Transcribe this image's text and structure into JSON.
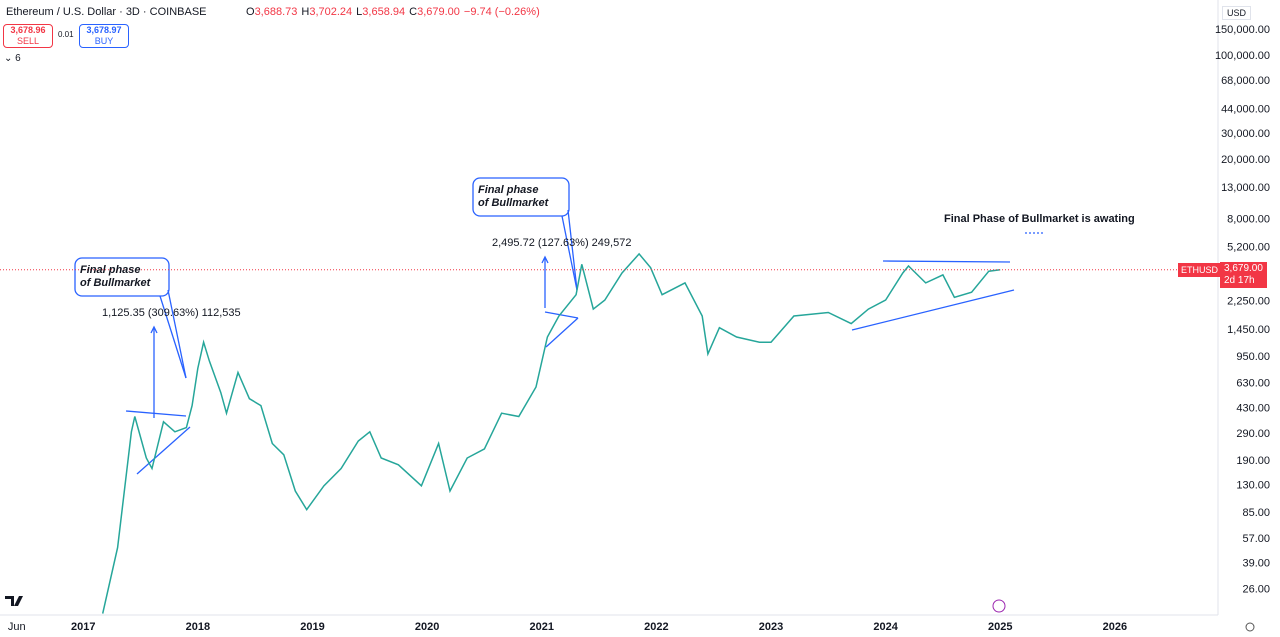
{
  "header": {
    "title": "Ethereum / U.S. Dollar · 3D · COINBASE",
    "ohlc": [
      "O",
      "3,688.73",
      "H",
      "3,702.24",
      "L",
      "3,658.94",
      "C",
      "3,679.00",
      "−9.74 (−0.26%)"
    ],
    "sell": {
      "price": "3,678.96",
      "label": "SELL"
    },
    "spread": "0.01",
    "buy": {
      "price": "3,678.97",
      "label": "BUY"
    },
    "indicators": "6",
    "currency": "USD",
    "price_tag": {
      "symbol": "ETHUSD",
      "price": "3,679.00",
      "countdown": "2d 17h"
    }
  },
  "chart_data": {
    "type": "line",
    "log_scale": true,
    "grid": false,
    "color": "#26a69a",
    "last_color": "#f23645",
    "x": [
      2017.17,
      2017.3,
      2017.42,
      2017.45,
      2017.55,
      2017.6,
      2017.7,
      2017.8,
      2017.9,
      2017.95,
      2018.0,
      2018.05,
      2018.1,
      2018.2,
      2018.25,
      2018.35,
      2018.45,
      2018.55,
      2018.65,
      2018.75,
      2018.85,
      2018.95,
      2019.1,
      2019.25,
      2019.4,
      2019.5,
      2019.6,
      2019.75,
      2019.95,
      2020.1,
      2020.2,
      2020.35,
      2020.5,
      2020.65,
      2020.8,
      2020.95,
      2021.05,
      2021.15,
      2021.3,
      2021.35,
      2021.45,
      2021.55,
      2021.7,
      2021.85,
      2021.95,
      2022.05,
      2022.25,
      2022.4,
      2022.45,
      2022.55,
      2022.7,
      2022.9,
      2023.0,
      2023.2,
      2023.35,
      2023.5,
      2023.7,
      2023.85,
      2024.0,
      2024.15,
      2024.2,
      2024.35,
      2024.5,
      2024.6,
      2024.75,
      2024.9,
      2025.0
    ],
    "values": [
      18,
      50,
      300,
      380,
      200,
      170,
      350,
      300,
      320,
      450,
      800,
      1200,
      900,
      550,
      400,
      750,
      500,
      450,
      250,
      210,
      120,
      90,
      130,
      170,
      260,
      300,
      200,
      180,
      130,
      250,
      120,
      200,
      230,
      400,
      380,
      600,
      1300,
      1800,
      2500,
      4000,
      2000,
      2300,
      3500,
      4700,
      3800,
      2500,
      3000,
      1800,
      1000,
      1500,
      1300,
      1200,
      1200,
      1800,
      1850,
      1900,
      1600,
      2000,
      2300,
      3500,
      3900,
      3000,
      3400,
      2400,
      2600,
      3600,
      3679
    ],
    "xlim": [
      2016.274,
      2026.9
    ],
    "xticks": [
      {
        "value": 2016.42,
        "label": "Jun"
      },
      2017,
      2018,
      2019,
      2020,
      2021,
      2022,
      2023,
      2024,
      2025,
      2026
    ],
    "ylim": [
      16.3,
      239000
    ],
    "yticks": [
      {
        "value": 150000,
        "label": "150,000.00"
      },
      {
        "value": 100000,
        "label": "100,000.00"
      },
      {
        "value": 68000,
        "label": "68,000.00"
      },
      {
        "value": 44000,
        "label": "44,000.00"
      },
      {
        "value": 30000,
        "label": "30,000.00"
      },
      {
        "value": 20000,
        "label": "20,000.00"
      },
      {
        "value": 13000,
        "label": "13,000.00"
      },
      {
        "value": 8000,
        "label": "8,000.00"
      },
      {
        "value": 5200,
        "label": "5,200.00"
      },
      {
        "value": 2250,
        "label": "2,250.00"
      },
      {
        "value": 1450,
        "label": "1,450.00"
      },
      {
        "value": 950,
        "label": "950.00"
      },
      {
        "value": 630,
        "label": "630.00"
      },
      {
        "value": 430,
        "label": "430.00"
      },
      {
        "value": 290,
        "label": "290.00"
      },
      {
        "value": 190,
        "label": "190.00"
      },
      {
        "value": 130,
        "label": "130.00"
      },
      {
        "value": 85,
        "label": "85.00"
      },
      {
        "value": 57,
        "label": "57.00"
      },
      {
        "value": 39,
        "label": "39.00"
      },
      {
        "value": 26,
        "label": "26.00"
      }
    ],
    "callouts": [
      [
        "Final phase",
        "of Bullmarket"
      ],
      [
        "Final phase",
        "of Bullmarket"
      ]
    ],
    "measures": [
      "1,125.35 (309.63%) 112,535",
      "2,495.72 (127.63%) 249,572"
    ],
    "note": "Final Phase of Bullmarket is awating"
  }
}
